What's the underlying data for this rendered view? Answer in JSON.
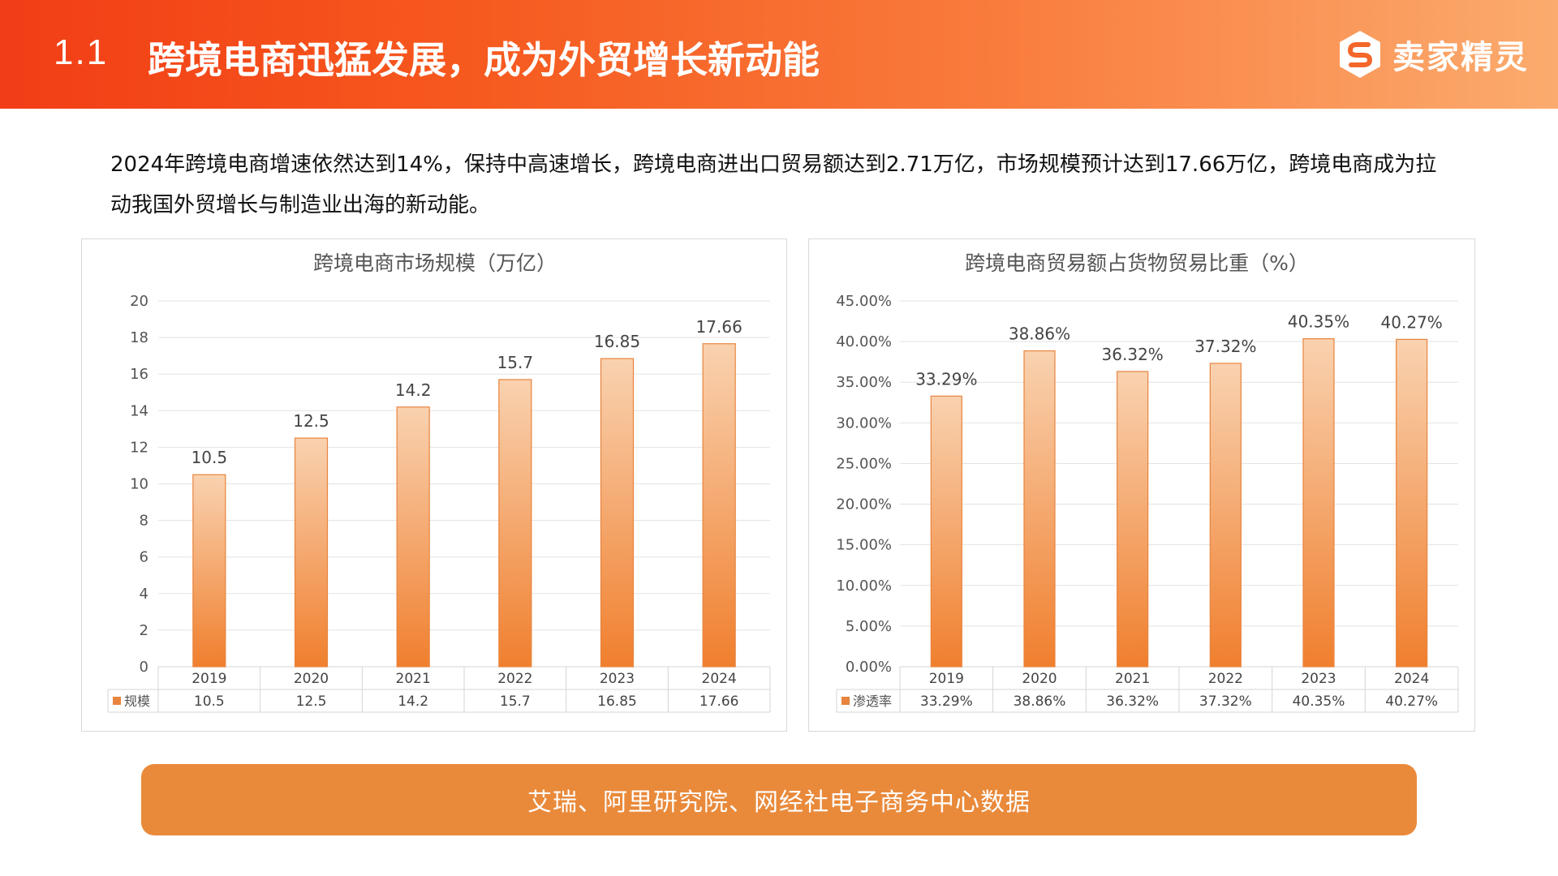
{
  "header": {
    "section": "1.1",
    "title": "跨境电商迅猛发展，成为外贸增长新动能",
    "brand": "卖家精灵"
  },
  "intro_text": "2024年跨境电商增速依然达到14%，保持中高速增长，跨境电商进出口贸易额达到2.71万亿，市场规模预计达到17.66万亿，跨境电商成为拉动我国外贸增长与制造业出海的新动能。",
  "footer": {
    "source": "艾瑞、阿里研究院、网经社电子商务中心数据"
  },
  "colors": {
    "accent": "#f05a28",
    "bar_top": "#f9d2b0",
    "bar_bottom": "#f07f2e",
    "bar_edge": "#e8843d",
    "footer": "#e98a3b"
  },
  "chart_data": [
    {
      "type": "bar",
      "title": "跨境电商市场规模（万亿）",
      "categories": [
        "2019",
        "2020",
        "2021",
        "2022",
        "2023",
        "2024"
      ],
      "series": [
        {
          "name": "规模",
          "values": [
            10.5,
            12.5,
            14.2,
            15.7,
            16.85,
            17.66
          ]
        }
      ],
      "value_labels": [
        "10.5",
        "12.5",
        "14.2",
        "15.7",
        "16.85",
        "17.66"
      ],
      "yticks": [
        "0",
        "2",
        "4",
        "6",
        "8",
        "10",
        "12",
        "14",
        "16",
        "18",
        "20"
      ],
      "ylim": [
        0,
        20
      ],
      "grid": true,
      "data_table": true,
      "xlabel": "",
      "ylabel": ""
    },
    {
      "type": "bar",
      "title": "跨境电商贸易额占货物贸易比重（%）",
      "categories": [
        "2019",
        "2020",
        "2021",
        "2022",
        "2023",
        "2024"
      ],
      "series": [
        {
          "name": "渗透率",
          "values": [
            33.29,
            38.86,
            36.32,
            37.32,
            40.35,
            40.27
          ]
        }
      ],
      "value_labels": [
        "33.29%",
        "38.86%",
        "36.32%",
        "37.32%",
        "40.35%",
        "40.27%"
      ],
      "yticks": [
        "0.00%",
        "5.00%",
        "10.00%",
        "15.00%",
        "20.00%",
        "25.00%",
        "30.00%",
        "35.00%",
        "40.00%",
        "45.00%"
      ],
      "ylim": [
        0,
        45
      ],
      "grid": true,
      "data_table": true,
      "xlabel": "",
      "ylabel": ""
    }
  ]
}
